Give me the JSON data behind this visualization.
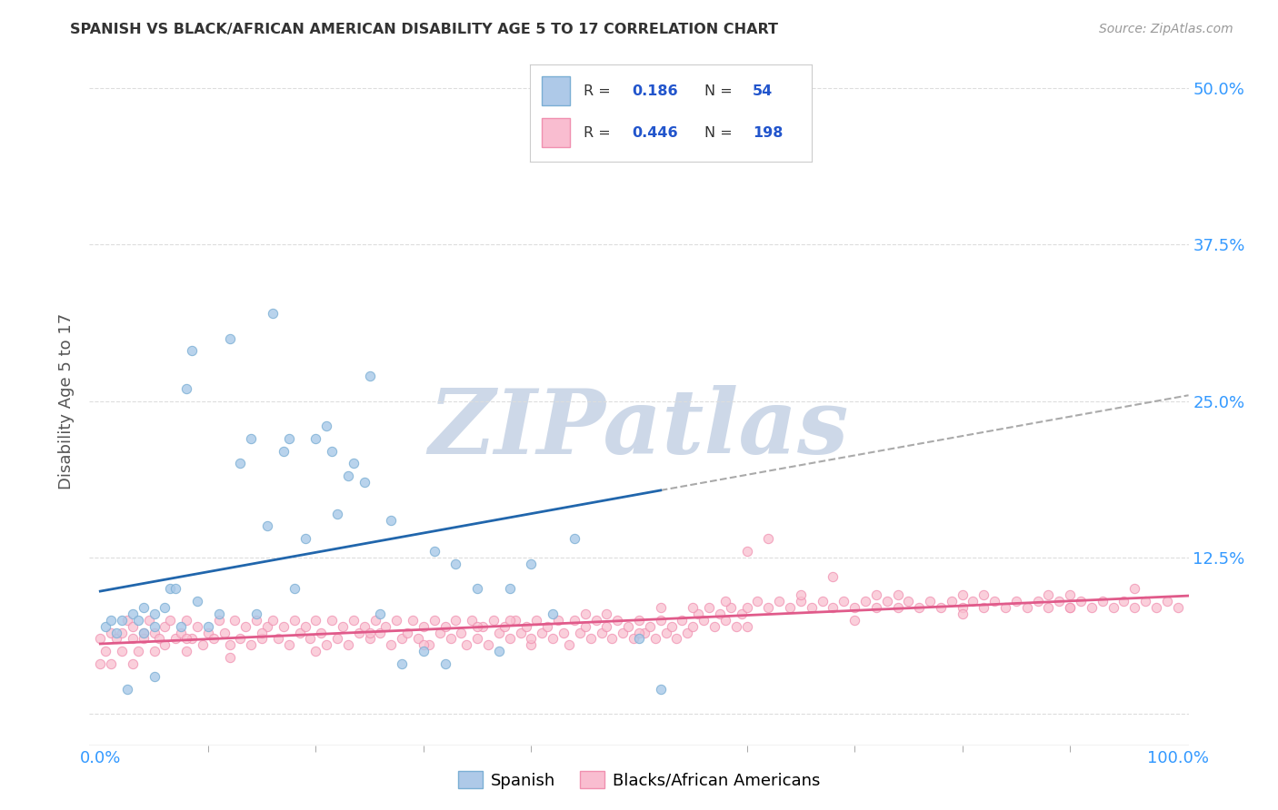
{
  "title": "SPANISH VS BLACK/AFRICAN AMERICAN DISABILITY AGE 5 TO 17 CORRELATION CHART",
  "source": "Source: ZipAtlas.com",
  "ylabel": "Disability Age 5 to 17",
  "xlim": [
    -0.01,
    1.01
  ],
  "ylim": [
    -0.025,
    0.525
  ],
  "yticks": [
    0.0,
    0.125,
    0.25,
    0.375,
    0.5
  ],
  "ytick_labels_left": [
    "",
    "",
    "",
    "",
    ""
  ],
  "ytick_labels_right": [
    "",
    "12.5%",
    "25.0%",
    "37.5%",
    "50.0%"
  ],
  "xtick_labels": [
    "0.0%",
    "",
    "",
    "",
    "100.0%"
  ],
  "blue_scatter_color": "#a8c8e8",
  "blue_scatter_edge": "#7bafd4",
  "pink_scatter_color": "#f9c0d0",
  "pink_scatter_edge": "#f090b0",
  "blue_line_color": "#2166ac",
  "pink_line_color": "#e05a8a",
  "dashed_line_color": "#aaaaaa",
  "tick_label_color": "#3399ff",
  "grid_color": "#dddddd",
  "background_color": "#ffffff",
  "title_color": "#333333",
  "axis_label_color": "#555555",
  "watermark_text": "ZIPatlas",
  "watermark_color": "#cdd8e8",
  "legend_r_color": "#2255cc",
  "legend_n_color": "#2255cc",
  "blue_fill": "#aec9e8",
  "blue_edge": "#7bafd4",
  "pink_fill": "#f9bdd0",
  "pink_edge": "#f090b0",
  "blue_slope": 0.155,
  "blue_intercept": 0.098,
  "blue_line_end": 0.52,
  "pink_slope": 0.038,
  "pink_intercept": 0.056,
  "spanish_x": [
    0.005,
    0.01,
    0.015,
    0.02,
    0.025,
    0.03,
    0.035,
    0.04,
    0.04,
    0.05,
    0.05,
    0.05,
    0.06,
    0.065,
    0.07,
    0.075,
    0.08,
    0.085,
    0.09,
    0.1,
    0.11,
    0.12,
    0.13,
    0.14,
    0.145,
    0.155,
    0.16,
    0.17,
    0.175,
    0.18,
    0.19,
    0.2,
    0.21,
    0.215,
    0.22,
    0.23,
    0.235,
    0.245,
    0.25,
    0.26,
    0.27,
    0.28,
    0.3,
    0.31,
    0.32,
    0.33,
    0.35,
    0.37,
    0.38,
    0.4,
    0.42,
    0.44,
    0.5,
    0.52
  ],
  "spanish_y": [
    0.07,
    0.075,
    0.065,
    0.075,
    0.02,
    0.08,
    0.075,
    0.085,
    0.065,
    0.08,
    0.07,
    0.03,
    0.085,
    0.1,
    0.1,
    0.07,
    0.26,
    0.29,
    0.09,
    0.07,
    0.08,
    0.3,
    0.2,
    0.22,
    0.08,
    0.15,
    0.32,
    0.21,
    0.22,
    0.1,
    0.14,
    0.22,
    0.23,
    0.21,
    0.16,
    0.19,
    0.2,
    0.185,
    0.27,
    0.08,
    0.155,
    0.04,
    0.05,
    0.13,
    0.04,
    0.12,
    0.1,
    0.05,
    0.1,
    0.12,
    0.08,
    0.14,
    0.06,
    0.02
  ],
  "black_x": [
    0.0,
    0.0,
    0.005,
    0.01,
    0.01,
    0.015,
    0.02,
    0.02,
    0.025,
    0.03,
    0.03,
    0.035,
    0.04,
    0.04,
    0.045,
    0.05,
    0.05,
    0.055,
    0.06,
    0.06,
    0.065,
    0.07,
    0.075,
    0.08,
    0.08,
    0.085,
    0.09,
    0.095,
    0.1,
    0.105,
    0.11,
    0.115,
    0.12,
    0.125,
    0.13,
    0.135,
    0.14,
    0.145,
    0.15,
    0.155,
    0.16,
    0.165,
    0.17,
    0.175,
    0.18,
    0.185,
    0.19,
    0.195,
    0.2,
    0.205,
    0.21,
    0.215,
    0.22,
    0.225,
    0.23,
    0.235,
    0.24,
    0.245,
    0.25,
    0.255,
    0.26,
    0.265,
    0.27,
    0.275,
    0.28,
    0.285,
    0.29,
    0.295,
    0.3,
    0.305,
    0.31,
    0.315,
    0.32,
    0.325,
    0.33,
    0.335,
    0.34,
    0.345,
    0.35,
    0.355,
    0.36,
    0.365,
    0.37,
    0.375,
    0.38,
    0.385,
    0.39,
    0.395,
    0.4,
    0.405,
    0.41,
    0.415,
    0.42,
    0.425,
    0.43,
    0.435,
    0.44,
    0.445,
    0.45,
    0.455,
    0.46,
    0.465,
    0.47,
    0.475,
    0.48,
    0.485,
    0.49,
    0.495,
    0.5,
    0.505,
    0.51,
    0.515,
    0.52,
    0.525,
    0.53,
    0.535,
    0.54,
    0.545,
    0.55,
    0.555,
    0.56,
    0.565,
    0.57,
    0.575,
    0.58,
    0.585,
    0.59,
    0.595,
    0.6,
    0.61,
    0.62,
    0.63,
    0.64,
    0.65,
    0.66,
    0.67,
    0.68,
    0.69,
    0.7,
    0.71,
    0.72,
    0.73,
    0.74,
    0.75,
    0.76,
    0.77,
    0.78,
    0.79,
    0.8,
    0.81,
    0.82,
    0.83,
    0.84,
    0.85,
    0.86,
    0.87,
    0.88,
    0.89,
    0.9,
    0.91,
    0.92,
    0.93,
    0.94,
    0.95,
    0.96,
    0.97,
    0.98,
    0.99,
    1.0,
    0.62,
    0.68,
    0.6,
    0.74,
    0.82,
    0.9,
    0.55,
    0.47,
    0.38,
    0.45,
    0.52,
    0.58,
    0.65,
    0.72,
    0.8,
    0.88,
    0.96,
    0.35,
    0.25,
    0.15,
    0.08,
    0.03,
    0.12,
    0.2,
    0.3,
    0.4,
    0.5,
    0.6,
    0.7,
    0.8,
    0.9
  ],
  "black_y": [
    0.04,
    0.06,
    0.05,
    0.065,
    0.04,
    0.06,
    0.065,
    0.05,
    0.075,
    0.06,
    0.07,
    0.05,
    0.065,
    0.06,
    0.075,
    0.05,
    0.065,
    0.06,
    0.07,
    0.055,
    0.075,
    0.06,
    0.065,
    0.05,
    0.075,
    0.06,
    0.07,
    0.055,
    0.065,
    0.06,
    0.075,
    0.065,
    0.055,
    0.075,
    0.06,
    0.07,
    0.055,
    0.075,
    0.06,
    0.07,
    0.075,
    0.06,
    0.07,
    0.055,
    0.075,
    0.065,
    0.07,
    0.06,
    0.075,
    0.065,
    0.055,
    0.075,
    0.06,
    0.07,
    0.055,
    0.075,
    0.065,
    0.07,
    0.06,
    0.075,
    0.065,
    0.07,
    0.055,
    0.075,
    0.06,
    0.065,
    0.075,
    0.06,
    0.07,
    0.055,
    0.075,
    0.065,
    0.07,
    0.06,
    0.075,
    0.065,
    0.055,
    0.075,
    0.06,
    0.07,
    0.055,
    0.075,
    0.065,
    0.07,
    0.06,
    0.075,
    0.065,
    0.07,
    0.055,
    0.075,
    0.065,
    0.07,
    0.06,
    0.075,
    0.065,
    0.055,
    0.075,
    0.065,
    0.07,
    0.06,
    0.075,
    0.065,
    0.07,
    0.06,
    0.075,
    0.065,
    0.07,
    0.06,
    0.075,
    0.065,
    0.07,
    0.06,
    0.075,
    0.065,
    0.07,
    0.06,
    0.075,
    0.065,
    0.07,
    0.08,
    0.075,
    0.085,
    0.07,
    0.08,
    0.075,
    0.085,
    0.07,
    0.08,
    0.085,
    0.09,
    0.085,
    0.09,
    0.085,
    0.09,
    0.085,
    0.09,
    0.085,
    0.09,
    0.085,
    0.09,
    0.085,
    0.09,
    0.085,
    0.09,
    0.085,
    0.09,
    0.085,
    0.09,
    0.085,
    0.09,
    0.085,
    0.09,
    0.085,
    0.09,
    0.085,
    0.09,
    0.085,
    0.09,
    0.085,
    0.09,
    0.085,
    0.09,
    0.085,
    0.09,
    0.085,
    0.09,
    0.085,
    0.09,
    0.085,
    0.14,
    0.11,
    0.13,
    0.095,
    0.095,
    0.095,
    0.085,
    0.08,
    0.075,
    0.08,
    0.085,
    0.09,
    0.095,
    0.095,
    0.095,
    0.095,
    0.1,
    0.07,
    0.065,
    0.065,
    0.06,
    0.04,
    0.045,
    0.05,
    0.055,
    0.06,
    0.065,
    0.07,
    0.075,
    0.08,
    0.085
  ]
}
